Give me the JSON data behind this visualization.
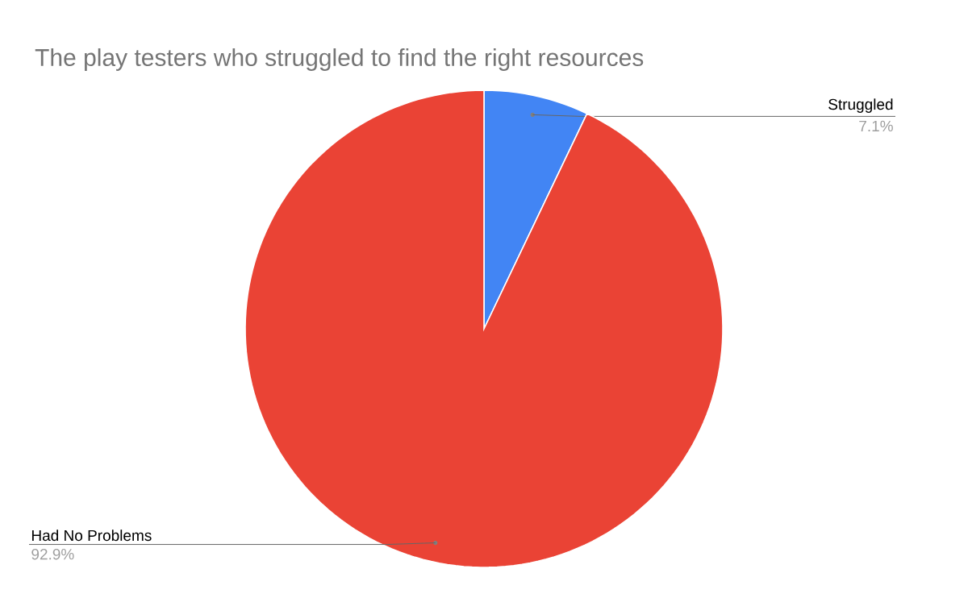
{
  "chart_data": {
    "type": "pie",
    "title": "The play testers who struggled to find the right resources",
    "categories": [
      "Struggled",
      "Had No Problems"
    ],
    "values": [
      7.1,
      92.9
    ],
    "value_labels": [
      "7.1%",
      "92.9%"
    ],
    "colors": [
      "#4285f4",
      "#ea4335"
    ]
  }
}
